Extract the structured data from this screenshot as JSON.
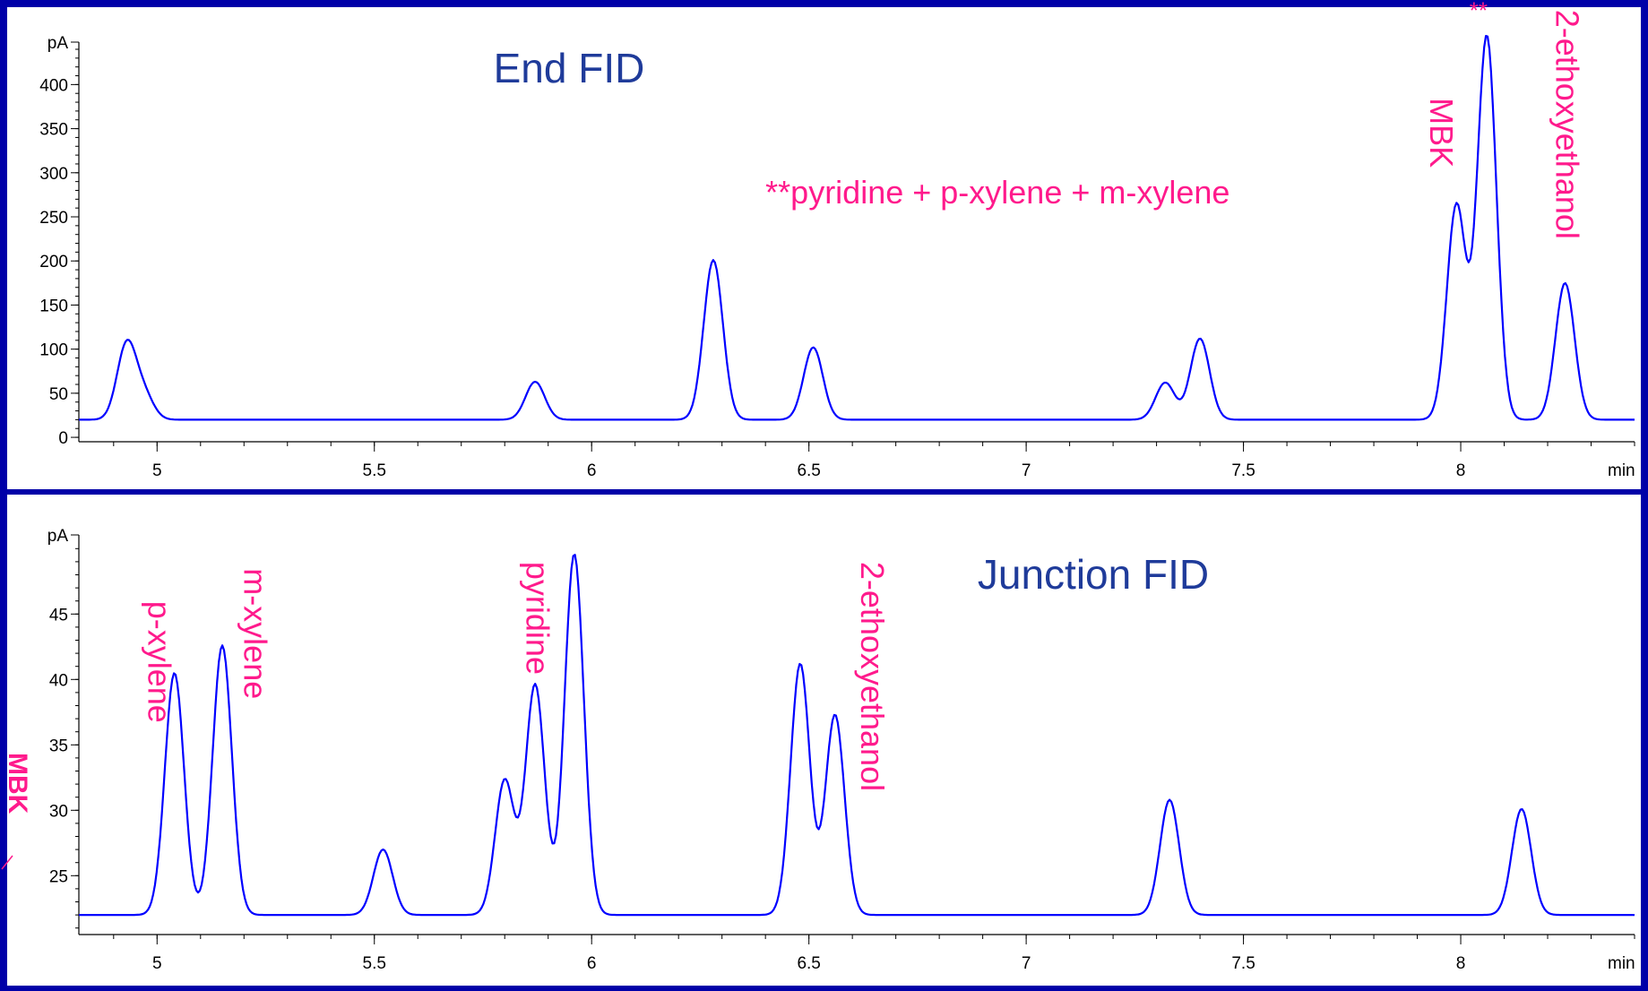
{
  "chart_data": [
    {
      "type": "line",
      "title": "End FID",
      "xlabel": "min",
      "ylabel": "pA",
      "xlim": [
        4.82,
        8.4
      ],
      "ylim": [
        -5,
        440
      ],
      "x_ticks": [
        "5",
        "5.5",
        "6",
        "6.5",
        "7",
        "7.5",
        "8"
      ],
      "y_ticks": [
        "0",
        "50",
        "100",
        "150",
        "200",
        "250",
        "300",
        "350",
        "400"
      ],
      "baseline": 20,
      "peaks": [
        {
          "rt": 4.93,
          "height": 105
        },
        {
          "rt": 4.97,
          "height": 47
        },
        {
          "rt": 5.87,
          "height": 63
        },
        {
          "rt": 6.28,
          "height": 201
        },
        {
          "rt": 6.51,
          "height": 102
        },
        {
          "rt": 7.32,
          "height": 62
        },
        {
          "rt": 7.4,
          "height": 112
        },
        {
          "rt": 7.99,
          "height": 263
        },
        {
          "rt": 8.06,
          "height": 455
        },
        {
          "rt": 8.24,
          "height": 175
        }
      ],
      "annotations": [
        {
          "text": "**pyridine + p-xylene + m-xylene",
          "x": 6.4,
          "y": 265,
          "rotated": false
        },
        {
          "text": "MBK",
          "x": 7.93,
          "y": 385,
          "rotated": true
        },
        {
          "text": "**",
          "x": 8.02,
          "y": 475,
          "rotated": false,
          "small": true
        },
        {
          "text": "2-ethoxyethanol",
          "x": 8.22,
          "y": 485,
          "rotated": true
        }
      ]
    },
    {
      "type": "line",
      "title": "Junction FID",
      "xlabel": "min",
      "ylabel": "pA",
      "xlim": [
        4.82,
        8.4
      ],
      "ylim": [
        20.5,
        50.5
      ],
      "x_ticks": [
        "5",
        "5.5",
        "6",
        "6.5",
        "7",
        "7.5",
        "8"
      ],
      "y_ticks": [
        "25",
        "30",
        "35",
        "40",
        "45"
      ],
      "baseline": 22,
      "peaks": [
        {
          "rt": 5.04,
          "height": 40.5
        },
        {
          "rt": 5.15,
          "height": 42.6
        },
        {
          "rt": 5.52,
          "height": 27
        },
        {
          "rt": 5.8,
          "height": 32.3
        },
        {
          "rt": 5.87,
          "height": 39.6
        },
        {
          "rt": 5.96,
          "height": 49.6
        },
        {
          "rt": 6.48,
          "height": 41.2
        },
        {
          "rt": 6.56,
          "height": 37.3
        },
        {
          "rt": 7.33,
          "height": 30.8
        },
        {
          "rt": 8.14,
          "height": 30.1
        }
      ],
      "annotations": [
        {
          "text": "p-xylene",
          "x": 4.98,
          "y": 46,
          "rotated": true
        },
        {
          "text": "m-xylene",
          "x": 5.2,
          "y": 48.5,
          "rotated": true
        },
        {
          "text": "pyridine",
          "x": 5.85,
          "y": 49,
          "rotated": true
        },
        {
          "text": "2-ethoxyethanol",
          "x": 6.62,
          "y": 49,
          "rotated": true
        }
      ]
    }
  ],
  "side_label": "MBK"
}
